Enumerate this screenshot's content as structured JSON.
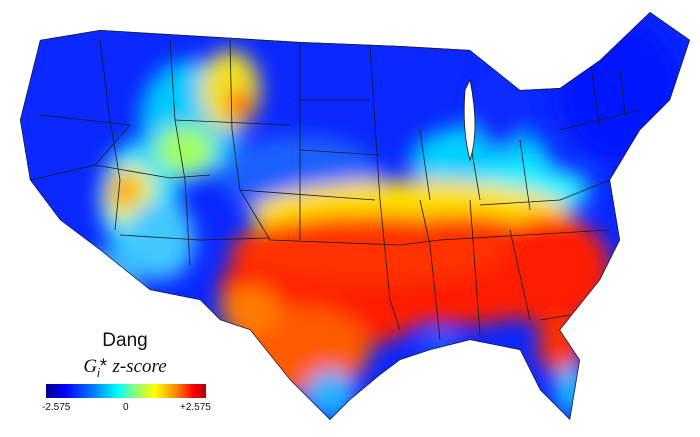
{
  "legend": {
    "title": "Dang",
    "statistic_symbol": "G",
    "statistic_subscript": "i",
    "statistic_suffix": "*",
    "statistic_label": "z-score",
    "tick_min": "-2.575",
    "tick_mid": "0",
    "tick_max": "+2.575"
  },
  "colors": {
    "low": "#0000ff",
    "mid_low": "#00c8ff",
    "mid": "#00ffff",
    "mid_high": "#ffff00",
    "high": "#ff0000",
    "border": "#1a1a1a"
  }
}
